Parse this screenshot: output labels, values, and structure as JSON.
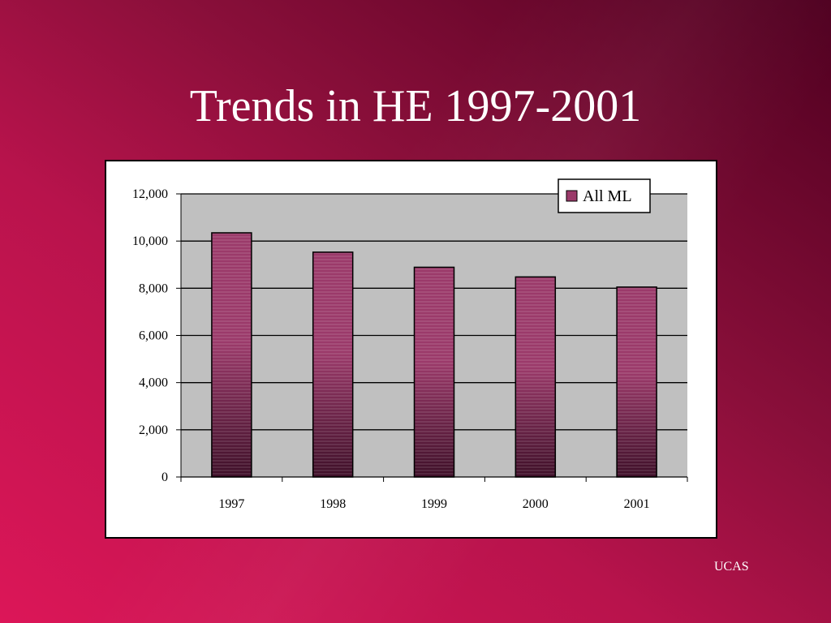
{
  "slide": {
    "title": "Trends in HE 1997-2001",
    "source": "UCAS"
  },
  "colors": {
    "bar_top": "#9b3a6a",
    "bar_bottom": "#3e0f28",
    "plot_bg": "#c0c0c0"
  },
  "chart_data": {
    "type": "bar",
    "categories": [
      "1997",
      "1998",
      "1999",
      "2000",
      "2001"
    ],
    "series": [
      {
        "name": "All ML",
        "values": [
          10350,
          9530,
          8890,
          8480,
          8050
        ]
      }
    ],
    "ylim": [
      0,
      12000
    ],
    "yticks": [
      0,
      2000,
      4000,
      6000,
      8000,
      10000,
      12000
    ],
    "ytick_labels": [
      "0",
      "2,000",
      "4,000",
      "6,000",
      "8,000",
      "10,000",
      "12,000"
    ],
    "grid": true,
    "legend": "top-right",
    "title": "",
    "xlabel": "",
    "ylabel": ""
  }
}
